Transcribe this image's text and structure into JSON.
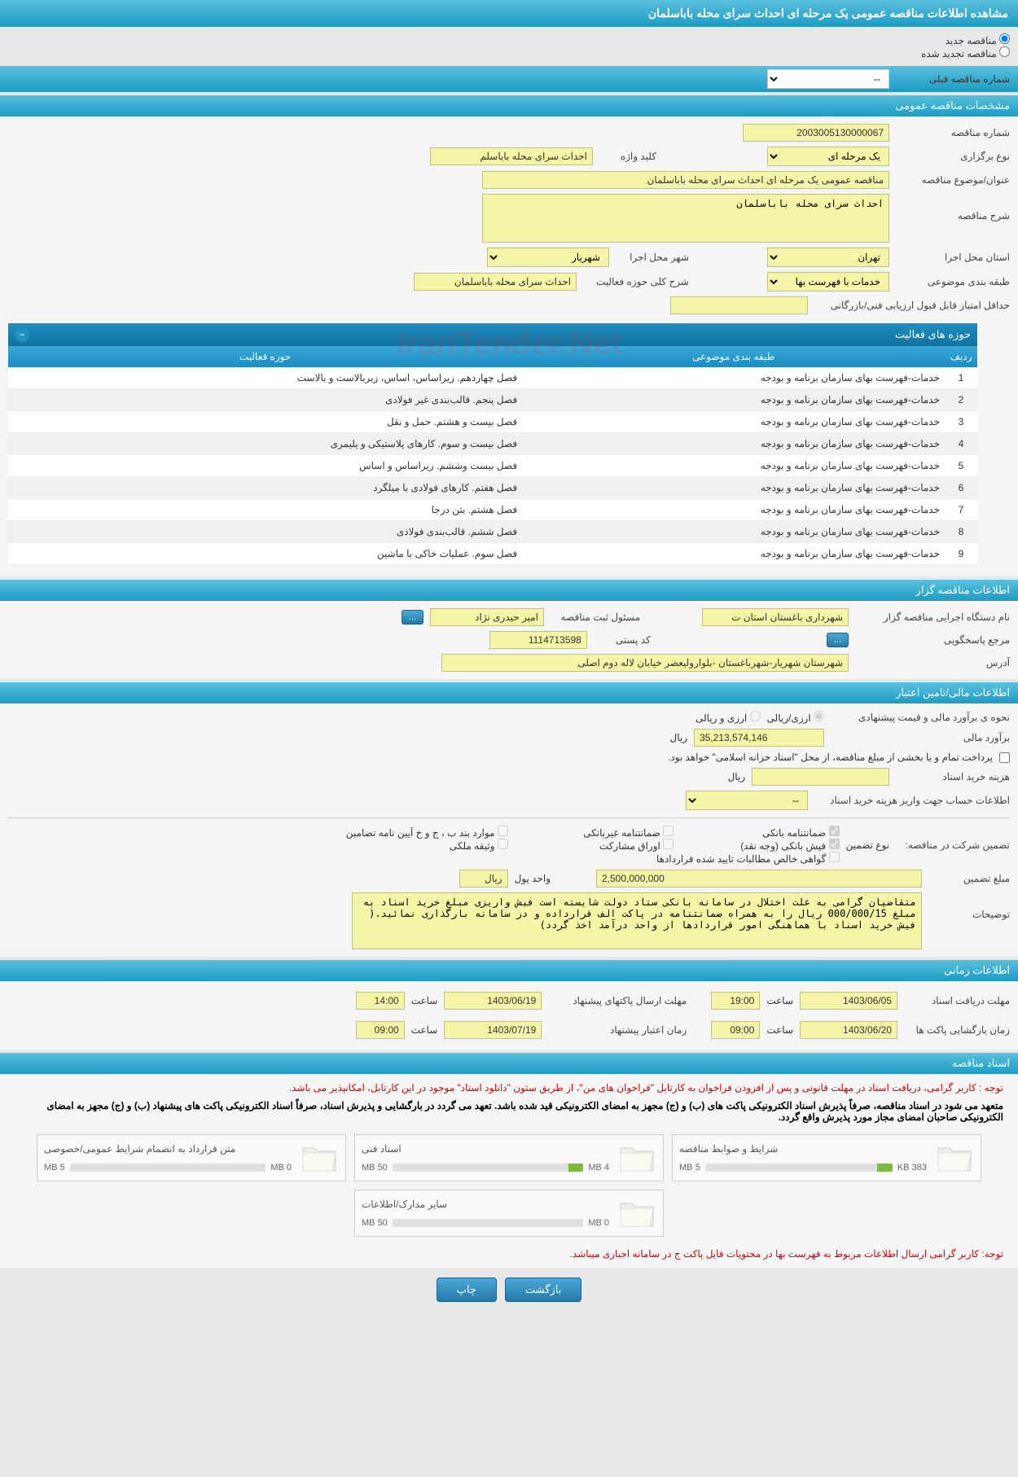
{
  "colors": {
    "header_gradient_top": "#5bc0de",
    "header_gradient_bottom": "#1b9cc4",
    "yellow_field": "#f5f5a8",
    "button_blue": "#2678a8",
    "progress_green": "#7cbb3e",
    "notice_red": "#d00",
    "bg": "#e8e8e8"
  },
  "page_title": "مشاهده اطلاعات مناقصه عمومی یک مرحله ای احداث سرای محله باباسلمان",
  "radios": {
    "new_tender": "مناقصه جدید",
    "renewed_tender": "مناقصه تجدید شده"
  },
  "prev_tender_label": "شماره مناقصه قبلی",
  "prev_tender_value": "--",
  "sections": {
    "general": "مشخصات مناقصه عمومی",
    "organizer": "اطلاعات مناقصه گزار",
    "financial": "اطلاعات مالی/تامین اعتبار",
    "timing": "اطلاعات زمانی",
    "docs": "اسناد مناقصه"
  },
  "general": {
    "tender_no_label": "شماره مناقصه",
    "tender_no": "2003005130000067",
    "type_label": "نوع برگزاری",
    "type_value": "یک مرحله ای",
    "keyword_label": "کلید واژه",
    "keyword_value": "احداث سرای محله باباسلم",
    "title_label": "عنوان/موضوع مناقصه",
    "title_value": "مناقصه عمومی یک مرحله ای احداث سرای محله باباسلمان",
    "desc_label": "شرح مناقصه",
    "desc_value": "احداث سرای محله باباسلمان",
    "province_label": "استان محل اجرا",
    "province_value": "تهران",
    "city_label": "شهر محل اجرا",
    "city_value": "شهریار",
    "category_label": "طبقه بندی موضوعی",
    "category_value": "خدمات با فهرست بها",
    "activity_desc_label": "شرح کلی حوزه فعالیت",
    "activity_desc_value": "احداث سرای محله باباسلمان",
    "min_score_label": "حداقل امتیاز قابل قبول ارزیابی فنی/بازرگانی",
    "min_score_value": ""
  },
  "activity_table": {
    "title": "حوزه های فعالیت",
    "cols": [
      "ردیف",
      "طبقه بندی موضوعی",
      "حوزه فعالیت"
    ],
    "rows": [
      [
        "1",
        "خدمات-فهرست بهای سازمان برنامه و بودجه",
        "فصل چهاردهم. زیراساس، اساس، زیربالاست و بالاست"
      ],
      [
        "2",
        "خدمات-فهرست بهای سازمان برنامه و بودجه",
        "فصل پنجم. قالب‌بندی غیر فولادی"
      ],
      [
        "3",
        "خدمات-فهرست بهای سازمان برنامه و بودجه",
        "فصل بیست و هشتم. حمل و نقل"
      ],
      [
        "4",
        "خدمات-فهرست بهای سازمان برنامه و بودجه",
        "فصل بیست و سوم. کارهای پلاستیکی و پلیمری"
      ],
      [
        "5",
        "خدمات-فهرست بهای سازمان برنامه و بودجه",
        "فصل بیست وششم. زیراساس و اساس"
      ],
      [
        "6",
        "خدمات-فهرست بهای سازمان برنامه و بودجه",
        "فصل هفتم. کارهای فولادی با میلگرد"
      ],
      [
        "7",
        "خدمات-فهرست بهای سازمان برنامه و بودجه",
        "فصل هشتم. بتن درجا"
      ],
      [
        "8",
        "خدمات-فهرست بهای سازمان برنامه و بودجه",
        "فصل ششم. قالب‌بندی فولادی"
      ],
      [
        "9",
        "خدمات-فهرست بهای سازمان برنامه و بودجه",
        "فصل سوم. عملیات خاکی با ماشین"
      ]
    ]
  },
  "organizer": {
    "exec_label": "نام دستگاه اجرایی مناقصه گزار",
    "exec_value": "شهرداری باغستان استان ت",
    "responsible_label": "مسئول ثبت مناقصه",
    "responsible_value": "امیر حیدری نژاد",
    "more_btn": "...",
    "contact_label": "مرجع پاسخگویی",
    "postal_label": "کد پستی",
    "postal_value": "1114713598",
    "address_label": "آدرس",
    "address_value": "شهرستان شهریار-شهرباغستان -بلوارولیعصر خیابان لاله دوم اصلی"
  },
  "financial": {
    "method_label": "نحوه ی برآورد مالی و قیمت پیشنهادی",
    "method_opt1": "ارزی/ریالی",
    "method_opt2": "ارزی و ریالی",
    "estimate_label": "برآورد مالی",
    "estimate_value": "35,213,574,146",
    "currency": "ریال",
    "payment_note": "پرداخت تمام و یا بخشی از مبلغ مناقصه، از محل \"اسناد خزانه اسلامی\" خواهد بود.",
    "doc_fee_label": "هزینه خرید اسناد",
    "doc_fee_value": "",
    "account_info_label": "اطلاعات حساب جهت واریز هزینه خرید اسناد",
    "account_value": "--",
    "guarantee_label": "تضمین شرکت در مناقصه:",
    "guarantee_type_label": "نوع تضمین",
    "g_bank": "ضمانتنامه بانکی",
    "g_nonbank": "ضمانتنامه غیربانکی",
    "g_items": "موارد بند ب ، ج و خ آیین نامه تضامین",
    "g_cash": "فیش بانکی (وجه نقد)",
    "g_bonds": "اوراق مشارکت",
    "g_property": "وثیقه ملکی",
    "g_receivables": "گواهی خالص مطالبات تایید شده قراردادها",
    "guarantee_amount_label": "مبلغ تضمین",
    "guarantee_amount": "2,500,000,000",
    "unit_label": "واحد پول",
    "unit_value": "ریال",
    "notes_label": "توضیحات",
    "notes_value": "متقاضیان گرامی به علت اختلال در سامانه بانکی ستاد دولت شایسته است فیش واریزی مبلغ خرید اسناد به مبلغ 000/000/15 ریال را به همراه ضمانتنامه در پاکت الف قرارداده و در سامانه بارگذاری نمائید.( فیش خرید اسناد با هماهنگی امور قراردادها از واحد درآمد اخذ گردد)"
  },
  "timing": {
    "receive_label": "مهلت دریافت اسناد",
    "receive_date": "1403/06/05",
    "receive_time": "19:00",
    "submit_label": "مهلت ارسال پاکتهای پیشنهاد",
    "submit_date": "1403/06/19",
    "submit_time": "14:00",
    "open_label": "زمان بازگشایی پاکت ها",
    "open_date": "1403/06/20",
    "open_time": "09:00",
    "validity_label": "زمان اعتبار پیشنهاد",
    "validity_date": "1403/07/19",
    "validity_time": "09:00",
    "hour_label": "ساعت"
  },
  "docs": {
    "notice1": "توجه : کاربر گرامی، دریافت اسناد در مهلت قانونی و پس از افزودن فراخوان به کارتابل \"فراخوان های من\"، از طریق ستون \"دانلود اسناد\" موجود در این کارتابل، امکانپذیر می باشد.",
    "notice2": "متعهد می شود در اسناد مناقصه، صرفاً پذیرش اسناد الکترونیکی پاکت های (ب) و (ج) مجهز به امضای الکترونیکی قید شده باشد. تعهد می گردد در بارگشایی و پذیرش اسناد، صرفاً اسناد الکترونیکی پاکت های پیشنهاد (ب) و (ج) مجهز به امضای الکترونیکی صاحبان امضای مجاز مورد پذیرش واقع گردد.",
    "notice3": "توجه: کاربر گرامی ارسال اطلاعات مربوط به فهرست بها در محتویات فایل پاکت ج در سامانه اجباری میباشد.",
    "items": [
      {
        "title": "شرایط و ضوابط مناقصه",
        "used": "383 KB",
        "total": "5 MB",
        "fillpct": 8
      },
      {
        "title": "اسناد فنی",
        "used": "4 MB",
        "total": "50 MB",
        "fillpct": 8
      },
      {
        "title": "متن قرارداد به انضمام شرایط عمومی/خصوصی",
        "used": "0 MB",
        "total": "5 MB",
        "fillpct": 0
      },
      {
        "title": "سایر مدارک/اطلاعات",
        "used": "0 MB",
        "total": "50 MB",
        "fillpct": 0
      }
    ]
  },
  "buttons": {
    "back": "بازگشت",
    "print": "چاپ"
  },
  "watermark": "IranTender.Net"
}
